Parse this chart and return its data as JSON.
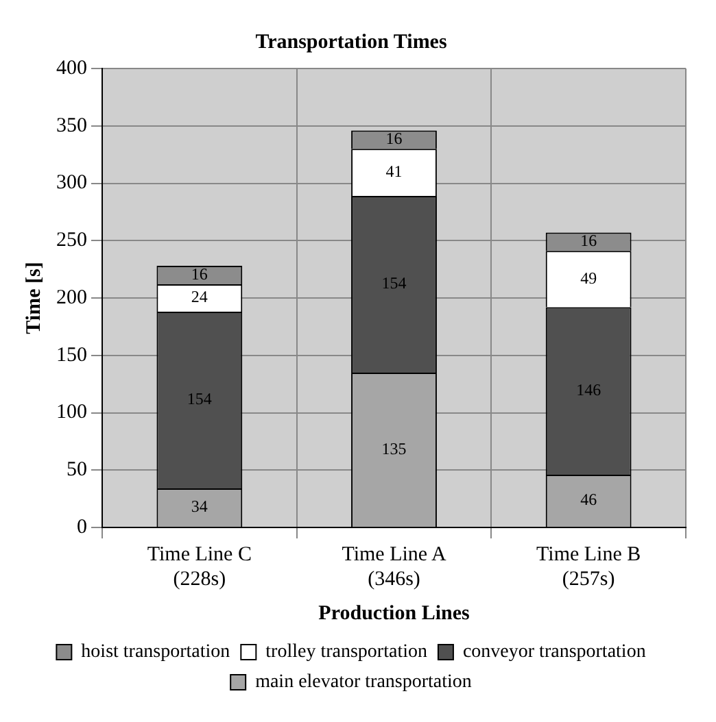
{
  "chart_data": {
    "type": "bar",
    "title": "Transportation Times",
    "xlabel": "Production Lines",
    "ylabel": "Time [s]",
    "categories": [
      "Time Line C\n(228s)",
      "Time Line A\n(346s)",
      "Time Line B\n(257s)"
    ],
    "stacked": true,
    "series": [
      {
        "name": "main elevator transportation",
        "color": "#a6a6a6",
        "values": [
          34,
          135,
          46
        ]
      },
      {
        "name": "conveyor transportation",
        "color": "#505050",
        "values": [
          154,
          154,
          146
        ]
      },
      {
        "name": "trolley transportation",
        "color": "#ffffff",
        "values": [
          24,
          41,
          49
        ]
      },
      {
        "name": "hoist transportation",
        "color": "#8c8c8c",
        "values": [
          16,
          16,
          16
        ]
      }
    ],
    "ylim": [
      0,
      400
    ],
    "yticks": [
      0,
      50,
      100,
      150,
      200,
      250,
      300,
      350,
      400
    ],
    "grid": true,
    "legend": "bottom",
    "data_labels": true
  }
}
